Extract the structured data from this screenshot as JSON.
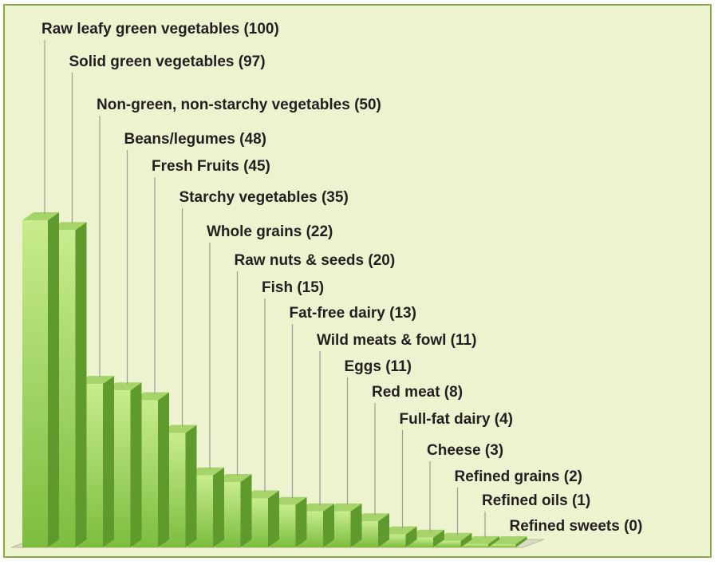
{
  "chart_data": {
    "type": "bar",
    "title": "",
    "xlabel": "",
    "ylabel": "",
    "ylim": [
      0,
      100
    ],
    "grid": false,
    "legend": "none",
    "colors": {
      "bar_front_top": "#c8ec8e",
      "bar_front_bottom": "#7cbd3e",
      "bar_side": "#5f9a2d",
      "bar_top": "#a7d46a",
      "background": "#eef3cf",
      "border": "#8aaa45",
      "leader_line": "#9a9a9a"
    },
    "categories": [
      "Raw leafy green vegetables",
      "Solid green vegetables",
      "Non-green, non-starchy vegetables",
      "Beans/legumes",
      "Fresh Fruits",
      "Starchy vegetables",
      "Whole grains",
      "Raw nuts & seeds",
      "Fish",
      "Fat-free dairy",
      "Wild meats & fowl",
      "Eggs",
      "Red meat",
      "Full-fat dairy",
      "Cheese",
      "Refined grains",
      "Refined oils",
      "Refined sweets"
    ],
    "values": [
      100,
      97,
      50,
      48,
      45,
      35,
      22,
      20,
      15,
      13,
      11,
      11,
      8,
      4,
      3,
      2,
      1,
      0
    ],
    "labels": [
      "Raw leafy green vegetables (100)",
      "Solid green vegetables (97)",
      "Non-green, non-starchy vegetables (50)",
      "Beans/legumes (48)",
      "Fresh Fruits (45)",
      "Starchy vegetables (35)",
      "Whole grains (22)",
      "Raw nuts & seeds (20)",
      "Fish (15)",
      "Fat-free dairy (13)",
      "Wild meats & fowl (11)",
      "Eggs (11)",
      "Red meat (8)",
      "Full-fat dairy (4)",
      "Cheese (3)",
      "Refined grains (2)",
      "Refined oils (1)",
      "Refined sweets (0)"
    ]
  }
}
